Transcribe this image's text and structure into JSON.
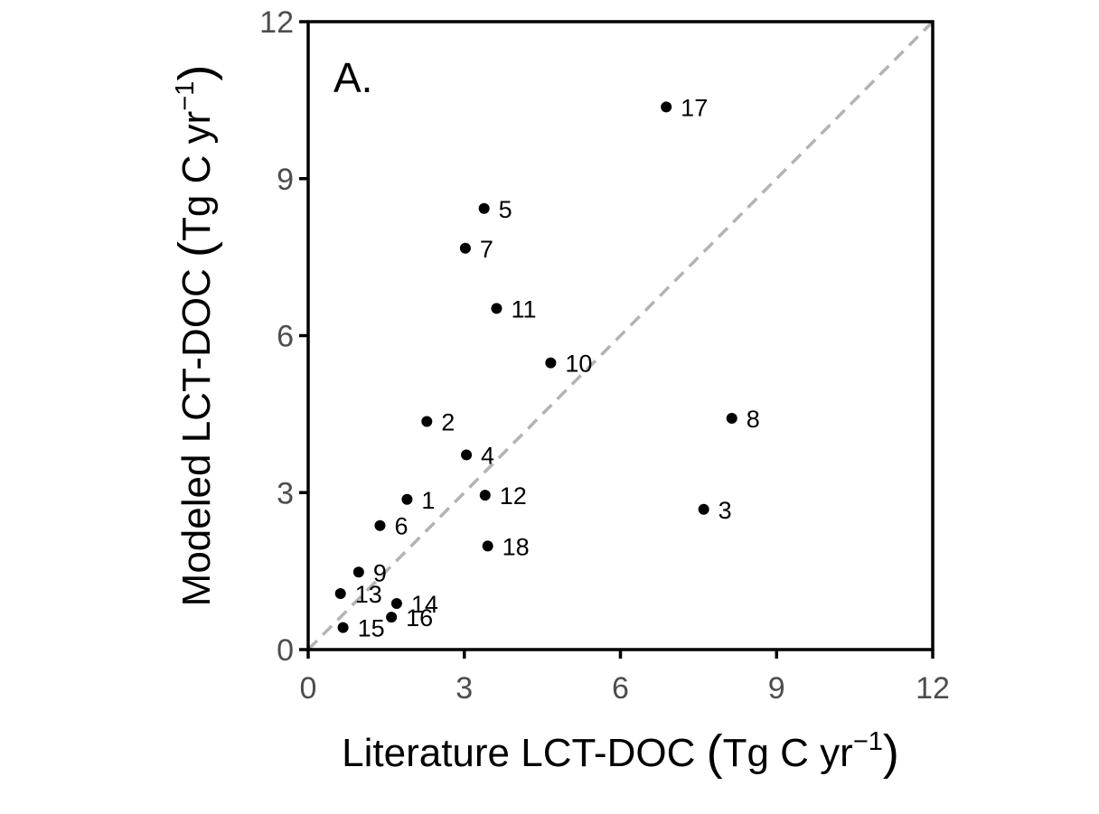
{
  "chart_data": {
    "type": "scatter",
    "panel_label": "A.",
    "xlabel": {
      "main": "Literature LCT-DOC ",
      "unit_open": "(",
      "unit_text": "Tg C yr",
      "unit_sup": "−1",
      "unit_close": ")"
    },
    "ylabel": {
      "main": "Modeled LCT-DOC ",
      "unit_open": "(",
      "unit_text": "Tg C yr",
      "unit_sup": "−1",
      "unit_close": ")"
    },
    "xlim": [
      0,
      12
    ],
    "ylim": [
      0,
      12
    ],
    "xticks": [
      0,
      3,
      6,
      9,
      12
    ],
    "yticks": [
      0,
      3,
      6,
      9,
      12
    ],
    "xtick_labels": [
      "0",
      "3",
      "6",
      "9",
      "12"
    ],
    "ytick_labels": [
      "0",
      "3",
      "6",
      "9",
      "12"
    ],
    "reference_line": {
      "type": "1:1",
      "style": "dashed",
      "color": "#b3b3b3"
    },
    "grid": false,
    "point_color": "#000000",
    "points": [
      {
        "label": "1",
        "x": 1.9,
        "y": 2.87
      },
      {
        "label": "2",
        "x": 2.28,
        "y": 4.36
      },
      {
        "label": "3",
        "x": 7.6,
        "y": 2.68
      },
      {
        "label": "4",
        "x": 3.04,
        "y": 3.72
      },
      {
        "label": "5",
        "x": 3.38,
        "y": 8.43
      },
      {
        "label": "6",
        "x": 1.38,
        "y": 2.37
      },
      {
        "label": "7",
        "x": 3.02,
        "y": 7.67
      },
      {
        "label": "8",
        "x": 8.14,
        "y": 4.42
      },
      {
        "label": "9",
        "x": 0.97,
        "y": 1.48
      },
      {
        "label": "10",
        "x": 4.66,
        "y": 5.48
      },
      {
        "label": "11",
        "x": 3.62,
        "y": 6.52
      },
      {
        "label": "12",
        "x": 3.4,
        "y": 2.95
      },
      {
        "label": "13",
        "x": 0.62,
        "y": 1.07
      },
      {
        "label": "14",
        "x": 1.7,
        "y": 0.88
      },
      {
        "label": "15",
        "x": 0.67,
        "y": 0.42
      },
      {
        "label": "16",
        "x": 1.6,
        "y": 0.62
      },
      {
        "label": "17",
        "x": 6.88,
        "y": 10.37
      },
      {
        "label": "18",
        "x": 3.45,
        "y": 1.98
      }
    ]
  }
}
